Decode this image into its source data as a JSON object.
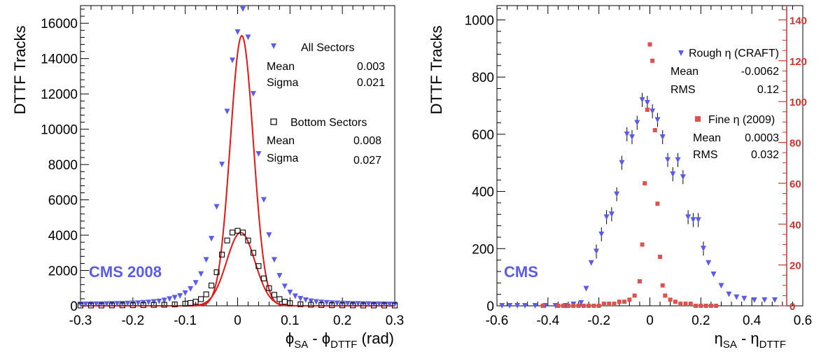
{
  "chart_data": [
    {
      "type": "scatter",
      "ylabel": "DTTF Tracks",
      "xlabel_parts": [
        "ϕ",
        "SA",
        " - ϕ",
        "DTTF",
        " (rad)"
      ],
      "xlim": [
        -0.3,
        0.3
      ],
      "ylim": [
        0,
        17000
      ],
      "xticks": [
        "-0.3",
        "-0.2",
        "-0.1",
        "0",
        "0.1",
        "0.2",
        "0.3"
      ],
      "yticks": [
        "0",
        "2000",
        "4000",
        "6000",
        "8000",
        "10000",
        "12000",
        "14000",
        "16000"
      ],
      "grid": false,
      "watermark": "CMS 2008",
      "legend": [
        {
          "label": "All Sectors",
          "marker": "triangle-down",
          "color": "#5b5be6",
          "stats": [
            {
              "name": "Mean",
              "value": "0.003"
            },
            {
              "name": "Sigma",
              "value": "0.021"
            }
          ]
        },
        {
          "label": "Bottom Sectors",
          "marker": "open-square",
          "color": "#000000",
          "stats": [
            {
              "name": "Mean",
              "value": "0.008"
            },
            {
              "name": "Sigma",
              "value": "0.027"
            }
          ]
        }
      ],
      "series": [
        {
          "name": "All Sectors",
          "marker": "triangle-down",
          "color": "#5b5be6",
          "x": [
            -0.3,
            -0.29,
            -0.28,
            -0.27,
            -0.26,
            -0.25,
            -0.24,
            -0.23,
            -0.22,
            -0.21,
            -0.2,
            -0.19,
            -0.18,
            -0.17,
            -0.16,
            -0.15,
            -0.14,
            -0.13,
            -0.12,
            -0.11,
            -0.1,
            -0.09,
            -0.08,
            -0.07,
            -0.06,
            -0.05,
            -0.04,
            -0.03,
            -0.02,
            -0.01,
            0.0,
            0.01,
            0.02,
            0.03,
            0.04,
            0.05,
            0.06,
            0.07,
            0.08,
            0.09,
            0.1,
            0.11,
            0.12,
            0.13,
            0.14,
            0.15,
            0.16,
            0.17,
            0.18,
            0.19,
            0.2,
            0.21,
            0.22,
            0.23,
            0.24,
            0.25,
            0.26,
            0.27,
            0.28,
            0.29,
            0.3
          ],
          "y": [
            80,
            80,
            90,
            90,
            90,
            100,
            110,
            110,
            120,
            130,
            140,
            150,
            170,
            190,
            220,
            250,
            300,
            380,
            460,
            560,
            720,
            950,
            1300,
            1800,
            2600,
            3800,
            5600,
            8000,
            11000,
            13900,
            15500,
            16800,
            15200,
            12000,
            8600,
            6000,
            4000,
            2600,
            1700,
            1100,
            760,
            540,
            400,
            320,
            260,
            220,
            190,
            170,
            150,
            140,
            130,
            120,
            110,
            110,
            100,
            100,
            90,
            90,
            90,
            80,
            80
          ]
        },
        {
          "name": "Bottom Sectors",
          "marker": "open-square",
          "color": "#000000",
          "x": [
            -0.3,
            -0.28,
            -0.26,
            -0.24,
            -0.22,
            -0.2,
            -0.18,
            -0.16,
            -0.14,
            -0.12,
            -0.1,
            -0.09,
            -0.08,
            -0.07,
            -0.06,
            -0.05,
            -0.04,
            -0.03,
            -0.02,
            -0.01,
            0.0,
            0.01,
            0.02,
            0.03,
            0.04,
            0.05,
            0.06,
            0.07,
            0.08,
            0.09,
            0.1,
            0.12,
            0.14,
            0.16,
            0.18,
            0.2,
            0.22,
            0.24,
            0.26,
            0.28,
            0.3
          ],
          "y": [
            20,
            20,
            20,
            25,
            30,
            35,
            40,
            50,
            60,
            80,
            120,
            160,
            230,
            380,
            650,
            1150,
            1900,
            2900,
            3700,
            4150,
            4250,
            4150,
            3700,
            3000,
            2250,
            1550,
            1000,
            620,
            380,
            230,
            150,
            90,
            60,
            45,
            35,
            30,
            25,
            20,
            20,
            20,
            20
          ]
        }
      ],
      "fits": [
        {
          "name": "All Sectors fit",
          "color": "#e01818",
          "shape": "gaussian",
          "amplitude": 15300,
          "mean": 0.008,
          "sigma": 0.022
        },
        {
          "name": "Bottom Sectors fit",
          "color": "#e01818",
          "shape": "gaussian",
          "amplitude": 4150,
          "mean": 0.006,
          "sigma": 0.027
        }
      ]
    },
    {
      "type": "scatter",
      "ylabel": "DTTF Tracks",
      "xlabel_parts": [
        "η",
        "SA",
        " - η",
        "DTTF",
        ""
      ],
      "xlim": [
        -0.6,
        0.6
      ],
      "ylim": [
        0,
        1050
      ],
      "y2lim": [
        0,
        147
      ],
      "xticks": [
        "-0.6",
        "-0.4",
        "-0.2",
        "0",
        "0.2",
        "0.4",
        "0.6"
      ],
      "yticks": [
        "0",
        "200",
        "400",
        "600",
        "800",
        "1000"
      ],
      "y2ticks": [
        "0",
        "20",
        "40",
        "60",
        "80",
        "100",
        "120",
        "140"
      ],
      "grid": false,
      "watermark": "CMS",
      "legend": [
        {
          "label": "Rough η (CRAFT)",
          "marker": "triangle-down",
          "color": "#5b5be6",
          "stats": [
            {
              "name": "Mean",
              "value": "-0.0062"
            },
            {
              "name": "RMS",
              "value": "0.12"
            }
          ]
        },
        {
          "label": "Fine η (2009)",
          "marker": "filled-square",
          "color": "#d9534f",
          "stats": [
            {
              "name": "Mean",
              "value": "0.0003"
            },
            {
              "name": "RMS",
              "value": "0.032"
            }
          ]
        }
      ],
      "series": [
        {
          "name": "Rough η (CRAFT)",
          "marker": "triangle-down",
          "color": "#5b5be6",
          "axis": "left",
          "x": [
            -0.58,
            -0.55,
            -0.52,
            -0.49,
            -0.45,
            -0.41,
            -0.37,
            -0.33,
            -0.3,
            -0.27,
            -0.25,
            -0.23,
            -0.21,
            -0.19,
            -0.17,
            -0.15,
            -0.13,
            -0.11,
            -0.09,
            -0.07,
            -0.05,
            -0.03,
            -0.01,
            0.01,
            0.03,
            0.05,
            0.07,
            0.09,
            0.11,
            0.13,
            0.15,
            0.17,
            0.19,
            0.21,
            0.23,
            0.25,
            0.28,
            0.31,
            0.34,
            0.37,
            0.41,
            0.45,
            0.49
          ],
          "y": [
            0,
            0,
            0,
            0,
            0,
            0,
            0,
            0,
            5,
            10,
            60,
            150,
            190,
            250,
            310,
            320,
            390,
            500,
            600,
            590,
            640,
            720,
            710,
            680,
            650,
            590,
            510,
            460,
            510,
            450,
            310,
            300,
            300,
            200,
            150,
            110,
            70,
            40,
            30,
            25,
            20,
            20,
            20
          ]
        },
        {
          "name": "Fine η (2009)",
          "marker": "filled-square",
          "color": "#d9534f",
          "axis": "right",
          "x": [
            -0.42,
            -0.36,
            -0.34,
            -0.32,
            -0.3,
            -0.28,
            -0.26,
            -0.24,
            -0.22,
            -0.2,
            -0.18,
            -0.16,
            -0.14,
            -0.12,
            -0.1,
            -0.08,
            -0.06,
            -0.04,
            -0.03,
            -0.02,
            -0.01,
            0.0,
            0.01,
            0.02,
            0.03,
            0.04,
            0.05,
            0.06,
            0.08,
            0.1,
            0.12,
            0.14,
            0.16,
            0.18,
            0.2,
            0.22,
            0.24,
            0.26
          ],
          "y": [
            0,
            0,
            0,
            0,
            0,
            0,
            0,
            0,
            0,
            0,
            1,
            1,
            1,
            2,
            2,
            3,
            5,
            12,
            30,
            60,
            96,
            128,
            120,
            86,
            50,
            24,
            10,
            5,
            3,
            2,
            1,
            1,
            1,
            0,
            0,
            0,
            0,
            0
          ]
        }
      ]
    }
  ]
}
